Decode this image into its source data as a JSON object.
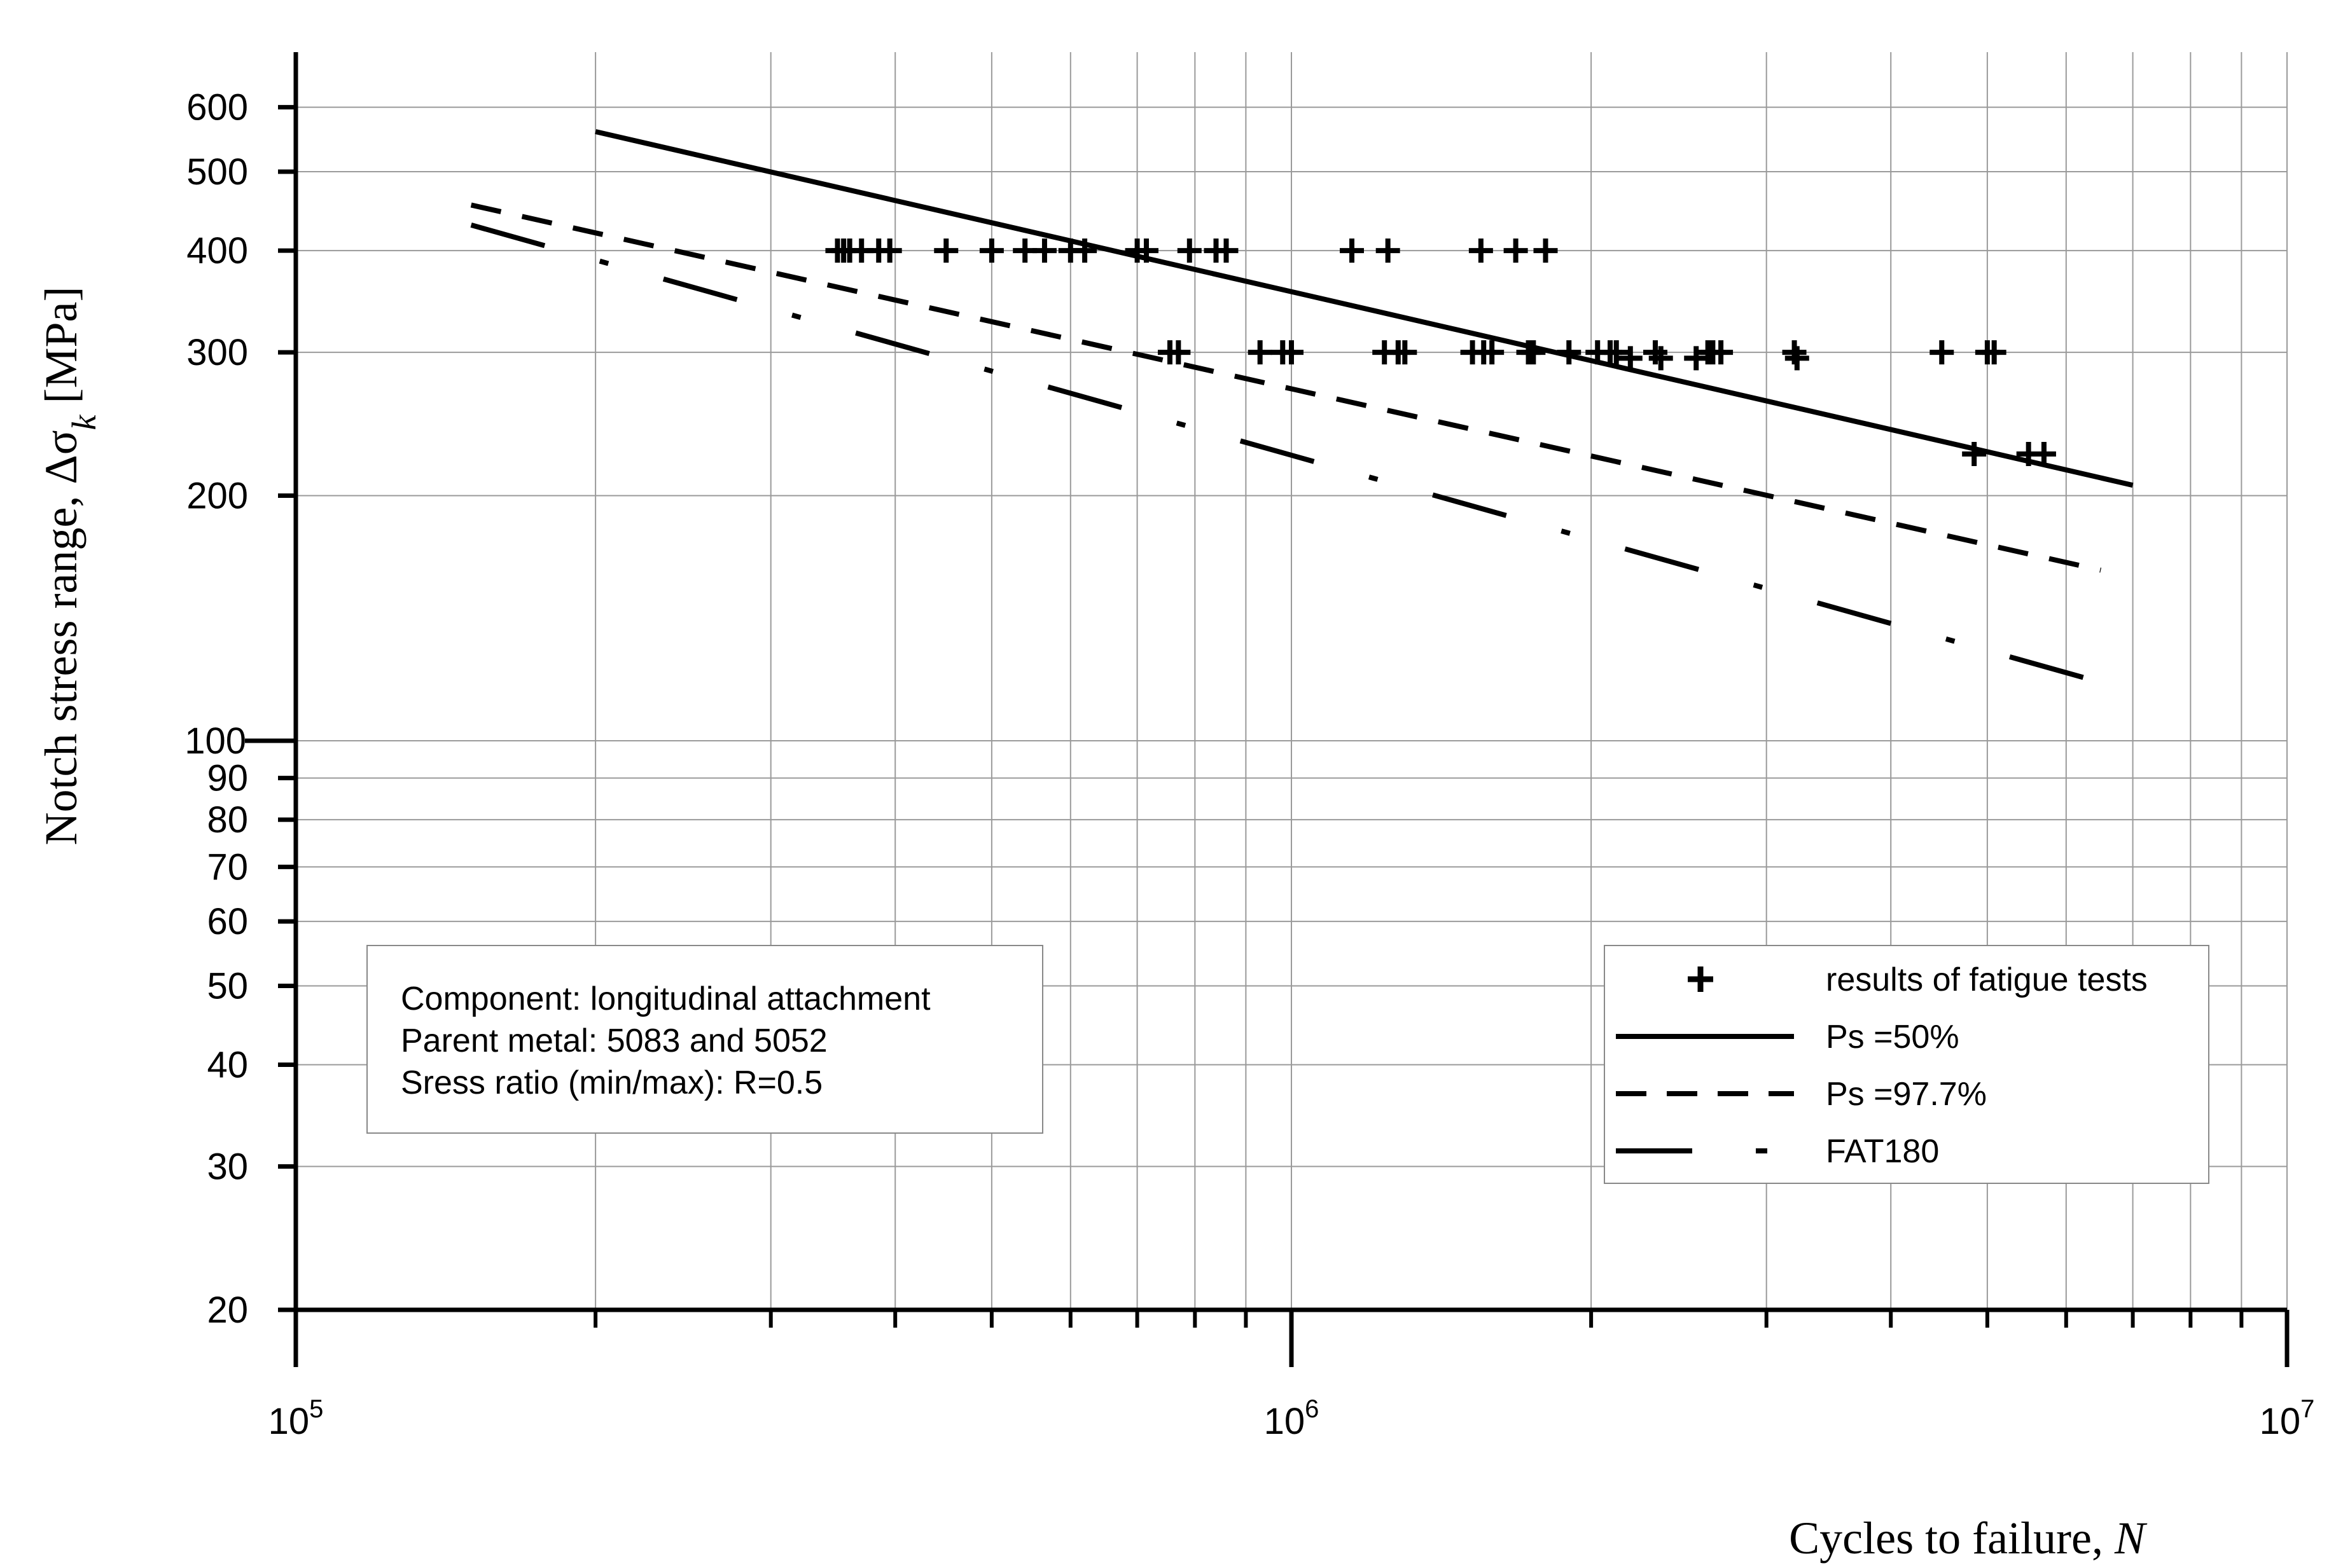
{
  "chart_data": {
    "type": "scatter",
    "xscale": "log",
    "yscale": "log",
    "xlim": [
      100000,
      10000000
    ],
    "ylim": [
      20,
      700
    ],
    "grid": true,
    "xlabel_main": "Cycles to failure, ",
    "xlabel_var": "N",
    "ylabel_main": "Notch stress range, Δσ",
    "ylabel_sub": "k",
    "ylabel_unit": " [MPa]",
    "x_ticks": [
      {
        "value": 100000,
        "base": "10",
        "exp": "5"
      },
      {
        "value": 1000000,
        "base": "10",
        "exp": "6"
      },
      {
        "value": 10000000,
        "base": "10",
        "exp": "7"
      }
    ],
    "y_ticks": [
      {
        "value": 600,
        "label": "600"
      },
      {
        "value": 500,
        "label": "500"
      },
      {
        "value": 400,
        "label": "400"
      },
      {
        "value": 300,
        "label": "300"
      },
      {
        "value": 200,
        "label": "200"
      },
      {
        "value": 100,
        "label": "100"
      },
      {
        "value": 90,
        "label": "90"
      },
      {
        "value": 80,
        "label": "80"
      },
      {
        "value": 70,
        "label": "70"
      },
      {
        "value": 60,
        "label": "60"
      },
      {
        "value": 50,
        "label": "50"
      },
      {
        "value": 40,
        "label": "40"
      },
      {
        "value": 30,
        "label": "30"
      },
      {
        "value": 20,
        "label": "20"
      }
    ],
    "series": [
      {
        "name": "results of fatigue tests",
        "kind": "marker",
        "marker": "plus",
        "color": "#000000",
        "points": [
          [
            350000,
            400
          ],
          [
            355000,
            400
          ],
          [
            360000,
            400
          ],
          [
            370000,
            400
          ],
          [
            385000,
            400
          ],
          [
            395000,
            400
          ],
          [
            450000,
            400
          ],
          [
            500000,
            400
          ],
          [
            540000,
            400
          ],
          [
            565000,
            400
          ],
          [
            600000,
            400
          ],
          [
            620000,
            400
          ],
          [
            700000,
            400
          ],
          [
            715000,
            400
          ],
          [
            790000,
            400
          ],
          [
            840000,
            400
          ],
          [
            860000,
            400
          ],
          [
            1150000,
            400
          ],
          [
            1250000,
            400
          ],
          [
            1550000,
            400
          ],
          [
            1680000,
            400
          ],
          [
            1800000,
            400
          ],
          [
            755000,
            300
          ],
          [
            770000,
            300
          ],
          [
            930000,
            300
          ],
          [
            980000,
            300
          ],
          [
            1000000,
            300
          ],
          [
            1240000,
            300
          ],
          [
            1280000,
            300
          ],
          [
            1300000,
            300
          ],
          [
            1520000,
            300
          ],
          [
            1560000,
            300
          ],
          [
            1590000,
            300
          ],
          [
            1730000,
            300
          ],
          [
            1750000,
            300
          ],
          [
            1900000,
            300
          ],
          [
            2030000,
            300
          ],
          [
            2090000,
            300
          ],
          [
            2120000,
            300
          ],
          [
            2190000,
            295
          ],
          [
            2320000,
            300
          ],
          [
            2350000,
            295
          ],
          [
            2550000,
            295
          ],
          [
            2620000,
            300
          ],
          [
            2650000,
            300
          ],
          [
            2700000,
            300
          ],
          [
            3200000,
            300
          ],
          [
            3220000,
            295
          ],
          [
            4500000,
            300
          ],
          [
            5000000,
            300
          ],
          [
            5080000,
            300
          ],
          [
            4850000,
            225
          ],
          [
            5500000,
            225
          ],
          [
            5700000,
            225
          ]
        ]
      },
      {
        "name": "Ps =50%",
        "kind": "line",
        "dash": "solid",
        "color": "#000000",
        "points": [
          [
            200000,
            560
          ],
          [
            7000000,
            206
          ]
        ]
      },
      {
        "name": "Ps =97.7%",
        "kind": "line",
        "dash": "dashed",
        "color": "#000000",
        "points": [
          [
            150000,
            455
          ],
          [
            6500000,
            162
          ]
        ]
      },
      {
        "name": "FAT180",
        "kind": "line",
        "dash": "dashdot",
        "color": "#000000",
        "points": [
          [
            150000,
            430
          ],
          [
            7000000,
            115
          ]
        ]
      }
    ]
  },
  "info_box": {
    "line1": "Component: longitudinal attachment",
    "line2": "Parent metal: 5083 and 5052",
    "line3": "Sress ratio (min/max): R=0.5"
  }
}
